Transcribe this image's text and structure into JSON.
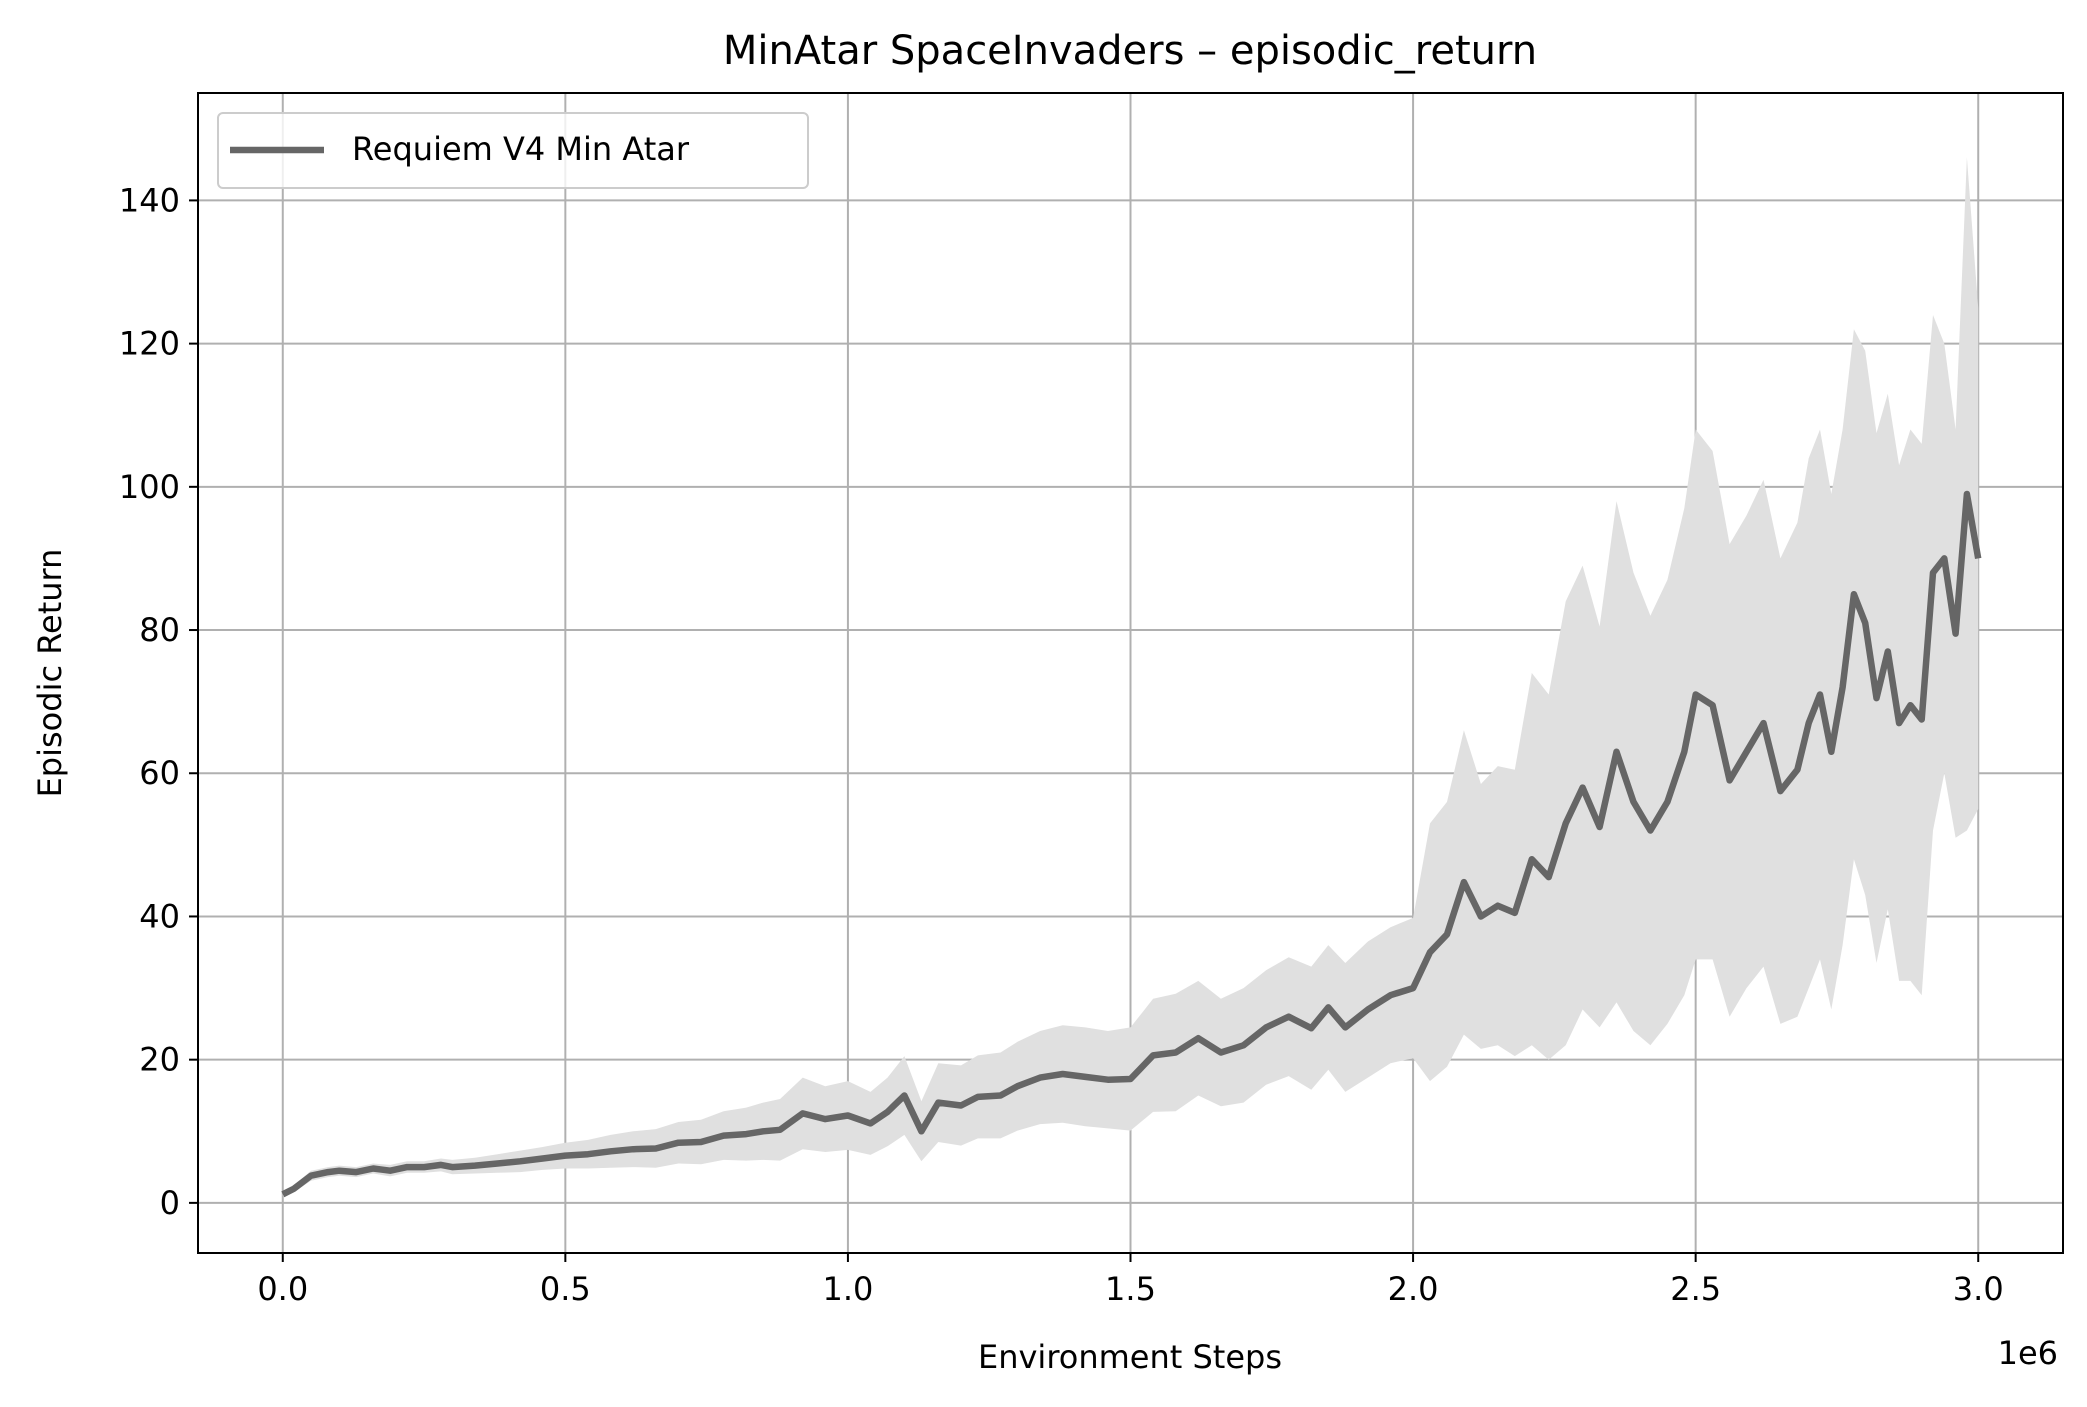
{
  "chart_data": {
    "type": "line",
    "title": "MinAtar SpaceInvaders – episodic_return",
    "xlabel": "Environment Steps",
    "ylabel": "Episodic Return",
    "x_offset_label": "1e6",
    "xlim": [
      -0.15,
      3.15
    ],
    "ylim": [
      -7,
      155
    ],
    "xticks": [
      0.0,
      0.5,
      1.0,
      1.5,
      2.0,
      2.5,
      3.0
    ],
    "xtick_labels": [
      "0.0",
      "0.5",
      "1.0",
      "1.5",
      "2.0",
      "2.5",
      "3.0"
    ],
    "yticks": [
      0,
      20,
      40,
      60,
      80,
      100,
      120,
      140
    ],
    "ytick_labels": [
      "0",
      "20",
      "40",
      "60",
      "80",
      "100",
      "120",
      "140"
    ],
    "grid": true,
    "legend_position": "top-left",
    "colors": {
      "line": "#666666",
      "band": "#e0e0e0",
      "grid": "#b0b0b0"
    },
    "series": [
      {
        "name": "Requiem V4 Min Atar",
        "x": [
          0.0,
          0.02,
          0.05,
          0.08,
          0.1,
          0.13,
          0.16,
          0.19,
          0.22,
          0.25,
          0.28,
          0.3,
          0.34,
          0.38,
          0.42,
          0.46,
          0.5,
          0.54,
          0.58,
          0.62,
          0.66,
          0.7,
          0.74,
          0.78,
          0.82,
          0.85,
          0.88,
          0.92,
          0.96,
          1.0,
          1.04,
          1.07,
          1.1,
          1.13,
          1.16,
          1.2,
          1.23,
          1.27,
          1.3,
          1.34,
          1.38,
          1.42,
          1.46,
          1.5,
          1.54,
          1.58,
          1.62,
          1.66,
          1.7,
          1.74,
          1.78,
          1.82,
          1.85,
          1.88,
          1.92,
          1.96,
          2.0,
          2.03,
          2.06,
          2.09,
          2.12,
          2.15,
          2.18,
          2.21,
          2.24,
          2.27,
          2.3,
          2.33,
          2.36,
          2.39,
          2.42,
          2.45,
          2.48,
          2.5,
          2.53,
          2.56,
          2.59,
          2.62,
          2.65,
          2.68,
          2.7,
          2.72,
          2.74,
          2.76,
          2.78,
          2.8,
          2.82,
          2.84,
          2.86,
          2.88,
          2.9,
          2.92,
          2.94,
          2.96,
          2.98,
          3.0
        ],
        "y": [
          1.2,
          2.0,
          3.8,
          4.3,
          4.5,
          4.3,
          4.8,
          4.5,
          5.0,
          5.0,
          5.3,
          5.0,
          5.2,
          5.5,
          5.8,
          6.2,
          6.6,
          6.8,
          7.2,
          7.5,
          7.6,
          8.4,
          8.5,
          9.4,
          9.6,
          10.0,
          10.2,
          12.5,
          11.7,
          12.2,
          11.1,
          12.7,
          15.0,
          10.0,
          14.0,
          13.6,
          14.8,
          15.0,
          16.3,
          17.5,
          18.0,
          17.6,
          17.2,
          17.3,
          20.6,
          21.0,
          23.0,
          21.0,
          22.0,
          24.5,
          26.0,
          24.4,
          27.3,
          24.5,
          27.0,
          29.0,
          30.0,
          35.0,
          37.5,
          44.8,
          40.0,
          41.5,
          40.5,
          48.0,
          45.5,
          53.0,
          58.0,
          52.5,
          63.0,
          56.0,
          52.0,
          56.0,
          63.0,
          71.0,
          69.5,
          59.0,
          63.0,
          67.0,
          57.5,
          60.5,
          67.0,
          71.0,
          63.0,
          72.0,
          85.0,
          81.0,
          70.5,
          77.0,
          67.0,
          69.5,
          67.5,
          88.0,
          90.0,
          79.5,
          99.0,
          90.0
        ],
        "band_upper": [
          1.5,
          2.5,
          4.5,
          5.0,
          5.2,
          5.0,
          5.5,
          5.3,
          5.8,
          5.8,
          6.2,
          6.0,
          6.3,
          6.8,
          7.3,
          7.8,
          8.4,
          8.8,
          9.5,
          10.0,
          10.3,
          11.3,
          11.6,
          12.8,
          13.3,
          14.0,
          14.5,
          17.5,
          16.3,
          17.0,
          15.5,
          17.5,
          20.5,
          14.2,
          19.5,
          19.2,
          20.6,
          21.0,
          22.5,
          24.0,
          24.8,
          24.5,
          24.0,
          24.5,
          28.5,
          29.2,
          31.0,
          28.5,
          30.0,
          32.5,
          34.3,
          33.0,
          36.0,
          33.5,
          36.5,
          38.5,
          39.8,
          53.0,
          56.0,
          66.0,
          58.5,
          61.0,
          60.5,
          74.0,
          71.0,
          84.0,
          89.0,
          80.5,
          98.0,
          88.0,
          82.0,
          87.0,
          97.0,
          108.0,
          105.0,
          92.0,
          96.0,
          101.0,
          90.0,
          95.0,
          104.0,
          108.0,
          99.0,
          108.0,
          122.0,
          119.0,
          107.5,
          113.0,
          103.0,
          108.0,
          106.0,
          124.0,
          120.0,
          108.0,
          146.0,
          125.0
        ],
        "band_lower": [
          0.9,
          1.5,
          3.1,
          3.6,
          3.8,
          3.6,
          4.1,
          3.7,
          4.2,
          4.2,
          4.4,
          4.0,
          4.1,
          4.2,
          4.3,
          4.6,
          4.8,
          4.8,
          4.9,
          5.0,
          4.9,
          5.5,
          5.4,
          6.0,
          5.9,
          6.0,
          5.9,
          7.5,
          7.1,
          7.4,
          6.7,
          7.9,
          9.5,
          5.8,
          8.5,
          8.0,
          9.0,
          9.0,
          10.1,
          11.0,
          11.2,
          10.7,
          10.4,
          10.1,
          12.7,
          12.8,
          15.0,
          13.5,
          14.0,
          16.5,
          17.7,
          15.8,
          18.6,
          15.5,
          17.5,
          19.5,
          20.2,
          17.0,
          19.0,
          23.5,
          21.5,
          22.0,
          20.5,
          22.0,
          20.0,
          22.0,
          27.0,
          24.5,
          28.0,
          24.0,
          22.0,
          25.0,
          29.0,
          34.0,
          34.0,
          26.0,
          30.0,
          33.0,
          25.0,
          26.0,
          30.0,
          34.0,
          27.0,
          36.0,
          48.0,
          43.0,
          33.5,
          41.0,
          31.0,
          31.0,
          29.0,
          52.0,
          60.0,
          51.0,
          52.0,
          55.0
        ]
      }
    ]
  }
}
